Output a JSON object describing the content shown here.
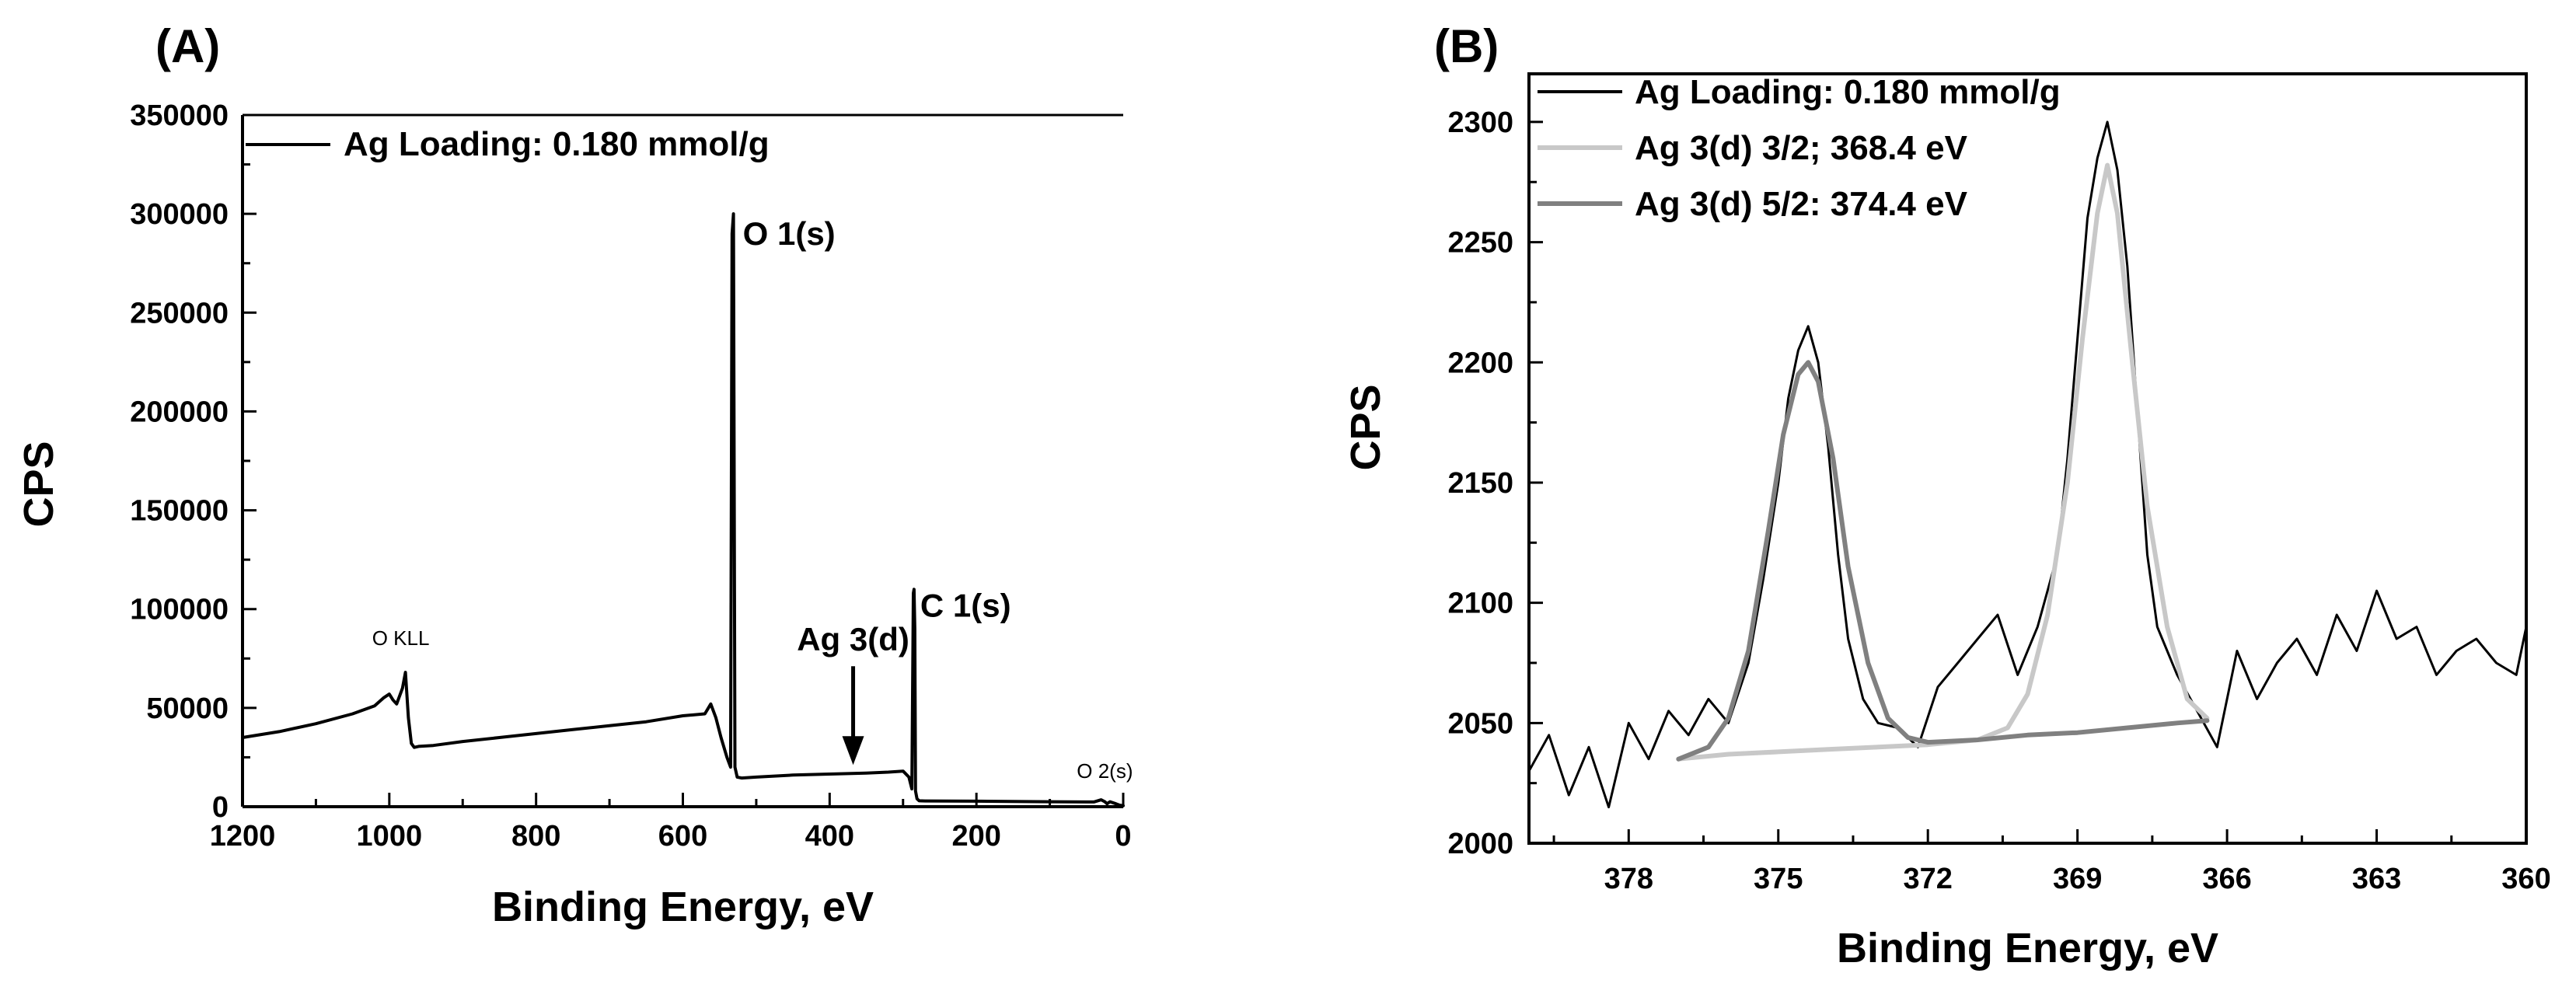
{
  "chart_data": [
    {
      "panel": "(A)",
      "type": "line",
      "xlabel": "Binding Energy, eV",
      "ylabel": "CPS",
      "xlim": [
        1200,
        0
      ],
      "ylim": [
        0,
        350000
      ],
      "x_ticks": [
        "1200",
        "1000",
        "800",
        "600",
        "400",
        "200",
        "0"
      ],
      "y_ticks": [
        "0",
        "50000",
        "100000",
        "150000",
        "200000",
        "250000",
        "300000",
        "350000"
      ],
      "legend": {
        "position": "top-left",
        "entries": [
          {
            "name": "Ag Loading: 0.180 mmol/g",
            "color": "#000000"
          }
        ]
      },
      "series": [
        {
          "name": "Ag Loading: 0.180 mmol/g",
          "color": "#000000",
          "x": [
            1200,
            1150,
            1100,
            1050,
            1020,
            1008,
            1000,
            995,
            990,
            982,
            978,
            974,
            970,
            966,
            960,
            940,
            900,
            850,
            800,
            750,
            700,
            650,
            600,
            570,
            562,
            555,
            548,
            540,
            535,
            533,
            531,
            529,
            526,
            520,
            500,
            450,
            400,
            350,
            320,
            300,
            292,
            288,
            286,
            285,
            284,
            283,
            281,
            278,
            270,
            200,
            100,
            40,
            30,
            25,
            22,
            18,
            10,
            5,
            0
          ],
          "y": [
            35000,
            38000,
            42000,
            47000,
            51000,
            55000,
            57000,
            54000,
            52000,
            60000,
            68000,
            45000,
            32000,
            30000,
            30500,
            31000,
            33000,
            35000,
            37000,
            39000,
            41000,
            43000,
            46000,
            47000,
            52000,
            45000,
            35000,
            25000,
            20000,
            290000,
            300000,
            20000,
            15000,
            14500,
            15000,
            16000,
            16500,
            17000,
            17500,
            18000,
            15000,
            9000,
            108000,
            110000,
            90000,
            8000,
            4000,
            3000,
            2900,
            2800,
            2500,
            2400,
            3500,
            2500,
            1500,
            2500,
            1500,
            800,
            500
          ]
        }
      ],
      "annotations": [
        {
          "text": "O 1(s)",
          "x": 531,
          "y": 300000
        },
        {
          "text": "C 1(s)",
          "x": 285,
          "y": 110000
        },
        {
          "text": "Ag 3(d)",
          "x": 368,
          "y": 18000,
          "arrow": true
        },
        {
          "text": "O KLL",
          "x": 978,
          "y": 68000
        },
        {
          "text": "O 2(s)",
          "x": 25,
          "y": 3500
        }
      ]
    },
    {
      "panel": "(B)",
      "type": "line",
      "xlabel": "Binding Energy, eV",
      "ylabel": "CPS",
      "xlim": [
        380,
        360
      ],
      "ylim": [
        2000,
        2320
      ],
      "x_ticks": [
        "378",
        "375",
        "372",
        "369",
        "366",
        "363",
        "360"
      ],
      "y_ticks": [
        "2000",
        "2050",
        "2100",
        "2150",
        "2200",
        "2250",
        "2300"
      ],
      "legend": {
        "position": "top-left",
        "entries": [
          {
            "name": "Ag Loading: 0.180 mmol/g",
            "color": "#000000"
          },
          {
            "name": "Ag 3(d) 3/2; 368.4 eV",
            "color": "#c8c8c8"
          },
          {
            "name": "Ag 3(d) 5/2: 374.4 eV",
            "color": "#808080"
          }
        ]
      },
      "series": [
        {
          "name": "Ag Loading: 0.180 mmol/g",
          "color": "#000000",
          "x": [
            380,
            379.6,
            379.2,
            378.8,
            378.4,
            378,
            377.6,
            377.2,
            376.8,
            376.4,
            376,
            375.6,
            375.3,
            375,
            374.8,
            374.6,
            374.4,
            374.2,
            374,
            373.8,
            373.6,
            373.3,
            373,
            372.6,
            372.2,
            371.8,
            371.4,
            371,
            370.6,
            370.2,
            369.8,
            369.4,
            369.2,
            369,
            368.8,
            368.6,
            368.4,
            368.2,
            368,
            367.8,
            367.6,
            367.4,
            367.2,
            367,
            366.6,
            366.2,
            365.8,
            365.4,
            365,
            364.6,
            364.2,
            363.8,
            363.4,
            363,
            362.6,
            362.2,
            361.8,
            361.4,
            361,
            360.6,
            360.2,
            360
          ],
          "y": [
            2030,
            2045,
            2020,
            2040,
            2015,
            2050,
            2035,
            2055,
            2045,
            2060,
            2050,
            2075,
            2110,
            2150,
            2185,
            2205,
            2215,
            2200,
            2165,
            2120,
            2085,
            2060,
            2050,
            2048,
            2040,
            2065,
            2075,
            2085,
            2095,
            2070,
            2090,
            2120,
            2160,
            2210,
            2260,
            2285,
            2300,
            2280,
            2240,
            2180,
            2120,
            2090,
            2080,
            2070,
            2055,
            2040,
            2080,
            2060,
            2075,
            2085,
            2070,
            2095,
            2080,
            2105,
            2085,
            2090,
            2070,
            2080,
            2085,
            2075,
            2070,
            2090
          ]
        },
        {
          "name": "Ag 3(d) 3/2; 368.4 eV",
          "color": "#c8c8c8",
          "x": [
            377,
            376,
            375,
            374,
            373,
            372,
            371,
            370.4,
            370,
            369.6,
            369.2,
            368.9,
            368.6,
            368.4,
            368.2,
            367.9,
            367.6,
            367.2,
            366.8,
            366.4
          ],
          "y": [
            2035,
            2037,
            2038,
            2039,
            2040,
            2041,
            2043,
            2048,
            2062,
            2095,
            2150,
            2210,
            2262,
            2282,
            2262,
            2200,
            2140,
            2090,
            2060,
            2052
          ]
        },
        {
          "name": "Ag 3(d) 5/2: 374.4 eV",
          "color": "#808080",
          "x": [
            377,
            376.4,
            376,
            375.6,
            375.2,
            374.9,
            374.6,
            374.4,
            374.2,
            373.9,
            373.6,
            373.2,
            372.8,
            372.4,
            372,
            371,
            370,
            369,
            368,
            367,
            366.4
          ],
          "y": [
            2035,
            2040,
            2052,
            2080,
            2130,
            2170,
            2195,
            2200,
            2192,
            2160,
            2115,
            2075,
            2052,
            2044,
            2042,
            2043,
            2045,
            2046,
            2048,
            2050,
            2051
          ]
        }
      ]
    }
  ]
}
